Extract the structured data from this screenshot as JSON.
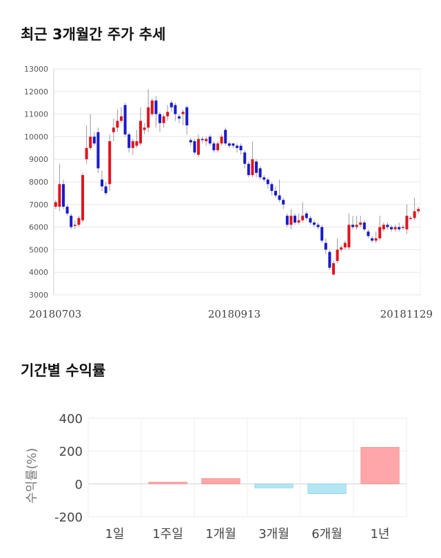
{
  "sections": {
    "price_title": "최근 3개월간 주가 추세",
    "returns_title": "기간별 수익률"
  },
  "chart_data": [
    {
      "type": "candlestick",
      "title": "최근 3개월간 주가 추세",
      "ylim": [
        3000,
        13000
      ],
      "yticks": [
        "13000",
        "12000",
        "11000",
        "10000",
        "9000",
        "8000",
        "7000",
        "6000",
        "5000",
        "4000",
        "3000"
      ],
      "xticks": [
        "20180703",
        "20180913",
        "20181129"
      ],
      "grid": true,
      "colors": {
        "up": "#e0141e",
        "down": "#1a1acc"
      },
      "candles": [
        {
          "o": 6900,
          "c": 7100,
          "h": 7200,
          "l": 6800
        },
        {
          "o": 6900,
          "c": 7900,
          "h": 8800,
          "l": 6700
        },
        {
          "o": 7900,
          "c": 6900,
          "h": 8100,
          "l": 6800
        },
        {
          "o": 6900,
          "c": 6600,
          "h": 7000,
          "l": 6500
        },
        {
          "o": 6500,
          "c": 6000,
          "h": 6600,
          "l": 5900
        },
        {
          "o": 6050,
          "c": 6100,
          "h": 6300,
          "l": 5900
        },
        {
          "o": 6100,
          "c": 6400,
          "h": 6500,
          "l": 6000
        },
        {
          "o": 6300,
          "c": 8300,
          "h": 8400,
          "l": 6200
        },
        {
          "o": 9000,
          "c": 9500,
          "h": 10500,
          "l": 8800
        },
        {
          "o": 9500,
          "c": 10000,
          "h": 11000,
          "l": 9400
        },
        {
          "o": 10000,
          "c": 9700,
          "h": 10200,
          "l": 9600
        },
        {
          "o": 10200,
          "c": 8600,
          "h": 10400,
          "l": 8400
        },
        {
          "o": 8100,
          "c": 7800,
          "h": 8500,
          "l": 7600
        },
        {
          "o": 7800,
          "c": 7500,
          "h": 8000,
          "l": 7400
        },
        {
          "o": 7900,
          "c": 9800,
          "h": 10100,
          "l": 7600
        },
        {
          "o": 10200,
          "c": 10400,
          "h": 10800,
          "l": 9800
        },
        {
          "o": 10400,
          "c": 10700,
          "h": 11200,
          "l": 10200
        },
        {
          "o": 10700,
          "c": 10900,
          "h": 11300,
          "l": 10600
        },
        {
          "o": 11400,
          "c": 10100,
          "h": 11500,
          "l": 10000
        },
        {
          "o": 10100,
          "c": 9500,
          "h": 10200,
          "l": 9300
        },
        {
          "o": 9500,
          "c": 9800,
          "h": 9900,
          "l": 9200
        },
        {
          "o": 9600,
          "c": 9800,
          "h": 10300,
          "l": 9500
        },
        {
          "o": 9700,
          "c": 10700,
          "h": 11300,
          "l": 9600
        },
        {
          "o": 10300,
          "c": 10400,
          "h": 10600,
          "l": 10100
        },
        {
          "o": 10400,
          "c": 11300,
          "h": 12100,
          "l": 10200
        },
        {
          "o": 11000,
          "c": 11600,
          "h": 11700,
          "l": 10900
        },
        {
          "o": 11600,
          "c": 11000,
          "h": 11800,
          "l": 10400
        },
        {
          "o": 11000,
          "c": 10600,
          "h": 11100,
          "l": 10200
        },
        {
          "o": 10600,
          "c": 10900,
          "h": 11000,
          "l": 10400
        },
        {
          "o": 10900,
          "c": 11100,
          "h": 11400,
          "l": 10700
        },
        {
          "o": 11500,
          "c": 11300,
          "h": 11600,
          "l": 11100
        },
        {
          "o": 11400,
          "c": 11000,
          "h": 11500,
          "l": 10700
        },
        {
          "o": 10900,
          "c": 10800,
          "h": 11000,
          "l": 10600
        },
        {
          "o": 11000,
          "c": 11100,
          "h": 11200,
          "l": 10500
        },
        {
          "o": 11300,
          "c": 10500,
          "h": 11400,
          "l": 10100
        },
        {
          "o": 9850,
          "c": 9750,
          "h": 9950,
          "l": 9600
        },
        {
          "o": 9800,
          "c": 9300,
          "h": 9900,
          "l": 9200
        },
        {
          "o": 9200,
          "c": 9900,
          "h": 10100,
          "l": 9100
        },
        {
          "o": 9900,
          "c": 9850,
          "h": 10000,
          "l": 9700
        },
        {
          "o": 9800,
          "c": 9900,
          "h": 10000,
          "l": 9600
        },
        {
          "o": 10000,
          "c": 9700,
          "h": 10100,
          "l": 9600
        },
        {
          "o": 9700,
          "c": 9400,
          "h": 9800,
          "l": 9300
        },
        {
          "o": 9400,
          "c": 9700,
          "h": 9800,
          "l": 9300
        },
        {
          "o": 9700,
          "c": 10000,
          "h": 10100,
          "l": 9600
        },
        {
          "o": 10300,
          "c": 9700,
          "h": 10400,
          "l": 9600
        },
        {
          "o": 9700,
          "c": 9600,
          "h": 9800,
          "l": 9500
        },
        {
          "o": 9700,
          "c": 9600,
          "h": 9700,
          "l": 9500
        },
        {
          "o": 9600,
          "c": 9500,
          "h": 9700,
          "l": 9300
        },
        {
          "o": 9600,
          "c": 9400,
          "h": 9700,
          "l": 9200
        },
        {
          "o": 9300,
          "c": 8800,
          "h": 9400,
          "l": 8600
        },
        {
          "o": 8800,
          "c": 8300,
          "h": 8900,
          "l": 8200
        },
        {
          "o": 8300,
          "c": 9000,
          "h": 9800,
          "l": 8200
        },
        {
          "o": 8900,
          "c": 8400,
          "h": 9000,
          "l": 8200
        },
        {
          "o": 8600,
          "c": 8200,
          "h": 8700,
          "l": 8100
        },
        {
          "o": 8200,
          "c": 8100,
          "h": 8300,
          "l": 8000
        },
        {
          "o": 8100,
          "c": 7900,
          "h": 8200,
          "l": 7700
        },
        {
          "o": 7900,
          "c": 7600,
          "h": 8000,
          "l": 7400
        },
        {
          "o": 7600,
          "c": 7400,
          "h": 7800,
          "l": 7300
        },
        {
          "o": 7400,
          "c": 7200,
          "h": 8100,
          "l": 7100
        },
        {
          "o": 7200,
          "c": 7000,
          "h": 7300,
          "l": 6800
        },
        {
          "o": 6500,
          "c": 6100,
          "h": 6600,
          "l": 6000
        },
        {
          "o": 6100,
          "c": 6500,
          "h": 6800,
          "l": 5900
        },
        {
          "o": 6500,
          "c": 6200,
          "h": 6600,
          "l": 6100
        },
        {
          "o": 6200,
          "c": 6300,
          "h": 6600,
          "l": 6100
        },
        {
          "o": 6300,
          "c": 6500,
          "h": 7100,
          "l": 6200
        },
        {
          "o": 6600,
          "c": 6400,
          "h": 6700,
          "l": 6300
        },
        {
          "o": 6400,
          "c": 6200,
          "h": 6500,
          "l": 6100
        },
        {
          "o": 6200,
          "c": 6100,
          "h": 6300,
          "l": 6000
        },
        {
          "o": 6100,
          "c": 6000,
          "h": 6200,
          "l": 5900
        },
        {
          "o": 6000,
          "c": 5400,
          "h": 6100,
          "l": 5300
        },
        {
          "o": 5300,
          "c": 5000,
          "h": 5500,
          "l": 4800
        },
        {
          "o": 4900,
          "c": 4200,
          "h": 5000,
          "l": 4100
        },
        {
          "o": 3900,
          "c": 4400,
          "h": 4500,
          "l": 3850
        },
        {
          "o": 4500,
          "c": 5000,
          "h": 5500,
          "l": 4400
        },
        {
          "o": 5000,
          "c": 5100,
          "h": 5200,
          "l": 4900
        },
        {
          "o": 5100,
          "c": 5300,
          "h": 5400,
          "l": 5000
        },
        {
          "o": 5100,
          "c": 6100,
          "h": 6600,
          "l": 5000
        },
        {
          "o": 6100,
          "c": 6000,
          "h": 6500,
          "l": 5900
        },
        {
          "o": 6000,
          "c": 6100,
          "h": 6500,
          "l": 5900
        },
        {
          "o": 6100,
          "c": 6200,
          "h": 6500,
          "l": 6000
        },
        {
          "o": 6200,
          "c": 5900,
          "h": 6300,
          "l": 5800
        },
        {
          "o": 5800,
          "c": 5600,
          "h": 5900,
          "l": 5500
        },
        {
          "o": 5500,
          "c": 5400,
          "h": 5600,
          "l": 5300
        },
        {
          "o": 5400,
          "c": 5500,
          "h": 5800,
          "l": 5300
        },
        {
          "o": 5500,
          "c": 6000,
          "h": 6500,
          "l": 5400
        },
        {
          "o": 5900,
          "c": 6100,
          "h": 6200,
          "l": 5800
        },
        {
          "o": 6100,
          "c": 6000,
          "h": 6200,
          "l": 5900
        },
        {
          "o": 6000,
          "c": 5900,
          "h": 6100,
          "l": 5800
        },
        {
          "o": 5900,
          "c": 6000,
          "h": 6100,
          "l": 5800
        },
        {
          "o": 6000,
          "c": 5900,
          "h": 6200,
          "l": 5800
        },
        {
          "o": 6000,
          "c": 6000,
          "h": 6100,
          "l": 5900
        },
        {
          "o": 5900,
          "c": 6500,
          "h": 7000,
          "l": 5700
        },
        {
          "o": 6400,
          "c": 6400,
          "h": 6500,
          "l": 6300
        },
        {
          "o": 6400,
          "c": 6700,
          "h": 7300,
          "l": 6300
        },
        {
          "o": 6700,
          "c": 6800,
          "h": 6900,
          "l": 6600
        }
      ]
    },
    {
      "type": "bar",
      "title": "기간별 수익률",
      "ylabel": "수익률(%)",
      "ylim": [
        -200,
        400
      ],
      "yticks": [
        "400",
        "200",
        "0",
        "-200"
      ],
      "categories": [
        "1일",
        "1주일",
        "1개월",
        "3개월",
        "6개월",
        "1년"
      ],
      "values": [
        0,
        10,
        32,
        -25,
        -60,
        222
      ],
      "colors": {
        "positive": "#ffa6a8",
        "negative": "#b2e6f4"
      }
    }
  ]
}
